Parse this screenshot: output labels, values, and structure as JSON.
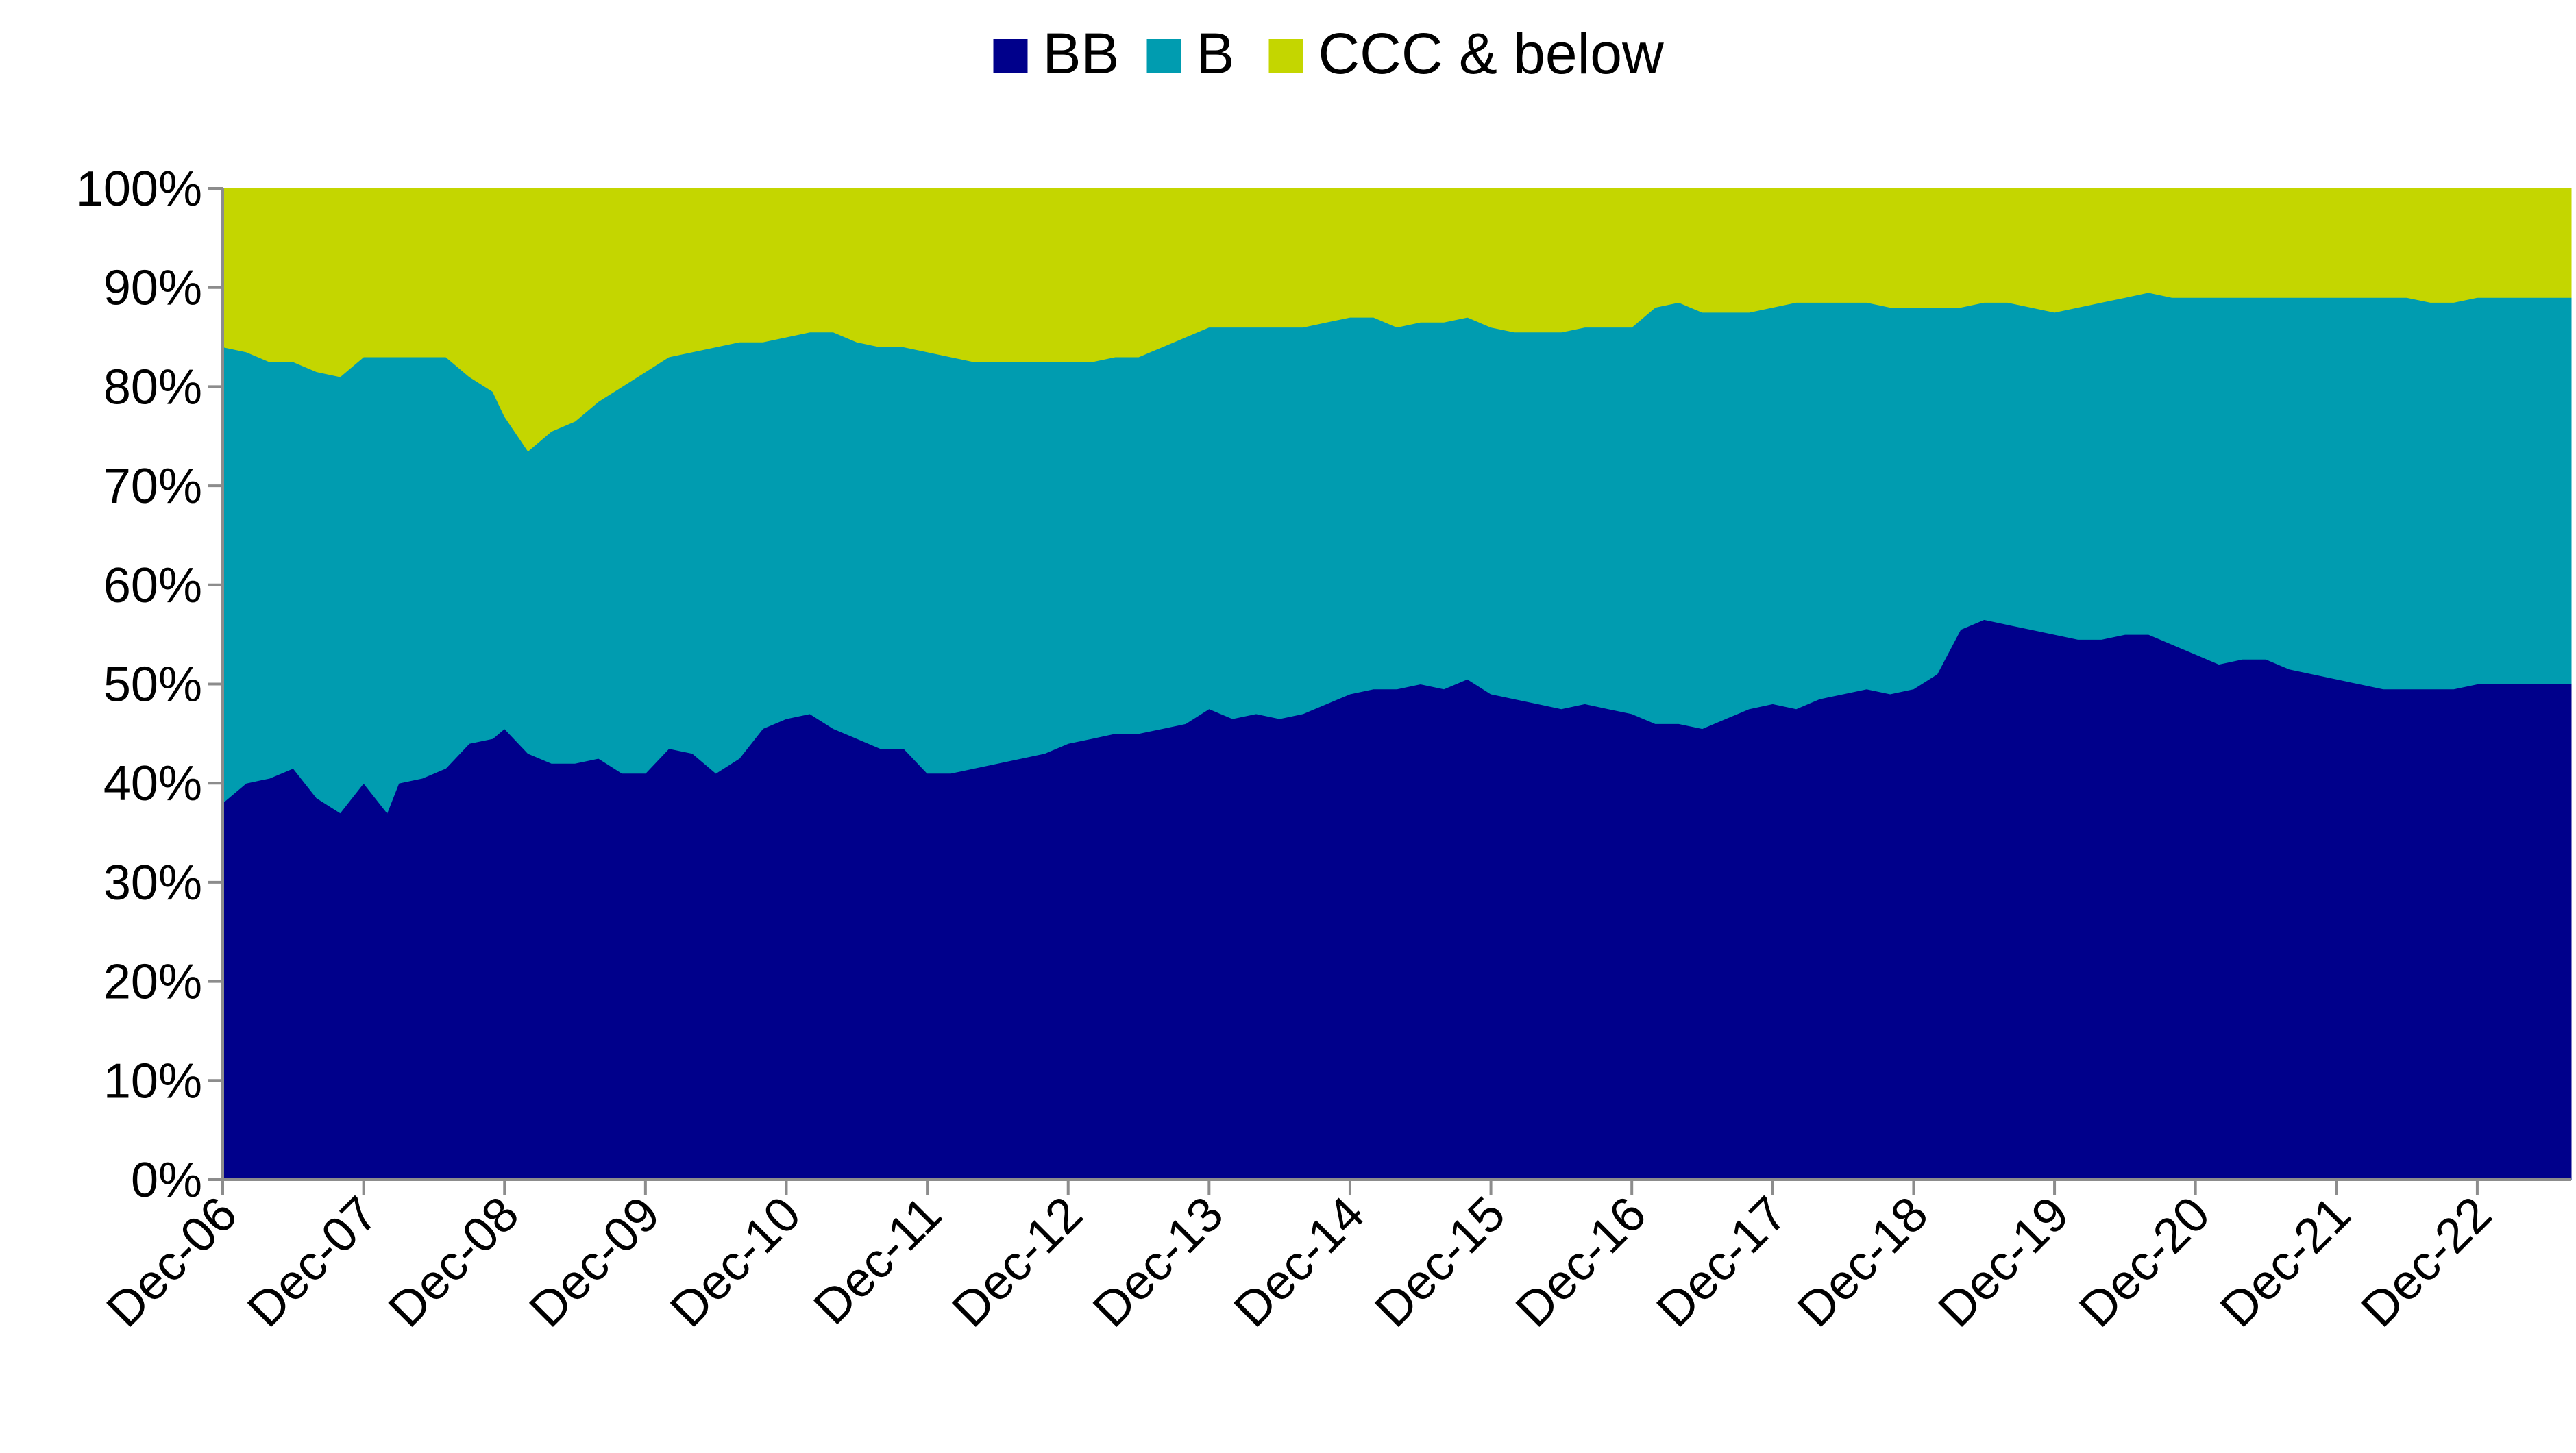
{
  "chart_data": {
    "type": "area",
    "stacked": true,
    "normalized_to_100": true,
    "legend_position": "top-center",
    "grid": false,
    "title": "",
    "xlabel": "",
    "ylabel": "",
    "ylim": [
      0,
      100
    ],
    "yticks": [
      "0%",
      "10%",
      "20%",
      "30%",
      "40%",
      "50%",
      "60%",
      "70%",
      "80%",
      "90%",
      "100%"
    ],
    "xticks": [
      "Dec-06",
      "Dec-07",
      "Dec-08",
      "Dec-09",
      "Dec-10",
      "Dec-11",
      "Dec-12",
      "Dec-13",
      "Dec-14",
      "Dec-15",
      "Dec-16",
      "Dec-17",
      "Dec-18",
      "Dec-19",
      "Dec-20",
      "Dec-21",
      "Dec-22"
    ],
    "x_range": [
      "2006-12",
      "2023-08"
    ],
    "x": [
      "2006-12",
      "2007-02",
      "2007-04",
      "2007-06",
      "2007-08",
      "2007-10",
      "2007-12",
      "2008-02",
      "2008-03",
      "2008-05",
      "2008-07",
      "2008-09",
      "2008-11",
      "2008-12",
      "2009-02",
      "2009-04",
      "2009-06",
      "2009-08",
      "2009-10",
      "2009-12",
      "2010-02",
      "2010-04",
      "2010-06",
      "2010-08",
      "2010-10",
      "2010-12",
      "2011-02",
      "2011-04",
      "2011-06",
      "2011-08",
      "2011-10",
      "2011-12",
      "2012-02",
      "2012-04",
      "2012-06",
      "2012-08",
      "2012-10",
      "2012-12",
      "2013-02",
      "2013-04",
      "2013-06",
      "2013-08",
      "2013-10",
      "2013-12",
      "2014-02",
      "2014-04",
      "2014-06",
      "2014-08",
      "2014-10",
      "2014-12",
      "2015-02",
      "2015-04",
      "2015-06",
      "2015-08",
      "2015-10",
      "2015-12",
      "2016-02",
      "2016-04",
      "2016-06",
      "2016-08",
      "2016-10",
      "2016-12",
      "2017-02",
      "2017-04",
      "2017-06",
      "2017-08",
      "2017-10",
      "2017-12",
      "2018-02",
      "2018-04",
      "2018-06",
      "2018-08",
      "2018-10",
      "2018-12",
      "2019-02",
      "2019-04",
      "2019-06",
      "2019-08",
      "2019-10",
      "2019-12",
      "2020-02",
      "2020-04",
      "2020-06",
      "2020-08",
      "2020-10",
      "2020-12",
      "2021-02",
      "2021-04",
      "2021-06",
      "2021-08",
      "2021-10",
      "2021-12",
      "2022-02",
      "2022-04",
      "2022-06",
      "2022-08",
      "2022-10",
      "2022-12",
      "2023-02",
      "2023-04",
      "2023-06",
      "2023-08"
    ],
    "series": [
      {
        "name": "BB",
        "color": "#00008B",
        "values": [
          38,
          40,
          40.5,
          41.5,
          38.5,
          37,
          40,
          37,
          40,
          40.5,
          41.5,
          44,
          44.5,
          45.5,
          43,
          42,
          42,
          42.5,
          41,
          41,
          43.5,
          43,
          41,
          42.5,
          45.5,
          46.5,
          47,
          45.5,
          44.5,
          43.5,
          43.5,
          41,
          41,
          41.5,
          42,
          42.5,
          43,
          44,
          44.5,
          45,
          45,
          45.5,
          46,
          47.5,
          46.5,
          47,
          46.5,
          47,
          48,
          49,
          49.5,
          49.5,
          50,
          49.5,
          50.5,
          49,
          48.5,
          48,
          47.5,
          48,
          47.5,
          47,
          46,
          46,
          45.5,
          46.5,
          47.5,
          48,
          47.5,
          48.5,
          49,
          49.5,
          49,
          49.5,
          51,
          55.5,
          56.5,
          56,
          55.5,
          55,
          54.5,
          54.5,
          55,
          55,
          54,
          53,
          52,
          52.5,
          52.5,
          51.5,
          51,
          50.5,
          50,
          49.5,
          49.5,
          49.5,
          49.5,
          50,
          50,
          50,
          50,
          50
        ]
      },
      {
        "name": "B",
        "color": "#009CB0",
        "values": [
          46,
          43.5,
          42,
          41,
          43,
          44,
          43,
          46,
          43,
          42.5,
          41.5,
          37,
          35,
          31.5,
          30.5,
          33.5,
          34.5,
          36,
          39,
          40.5,
          39.5,
          40.5,
          43,
          42,
          39,
          38.5,
          38.5,
          40,
          40,
          40.5,
          40.5,
          42.5,
          42,
          41,
          40.5,
          40,
          39.5,
          38.5,
          38,
          38,
          38,
          38.5,
          39,
          38.5,
          39.5,
          39,
          39.5,
          39,
          38.5,
          38,
          37.5,
          36.5,
          36.5,
          37,
          36.5,
          37,
          37,
          37.5,
          38,
          38,
          38.5,
          39,
          42,
          42.5,
          42,
          41,
          40,
          40,
          41,
          40,
          39.5,
          39,
          39,
          38.5,
          37,
          32.5,
          32,
          32.5,
          32.5,
          32.5,
          33.5,
          34,
          34,
          34.5,
          35,
          36,
          37,
          36.5,
          36.5,
          37.5,
          38,
          38.5,
          39,
          39.5,
          39.5,
          39,
          39,
          39,
          39,
          39,
          39,
          39
        ]
      },
      {
        "name": "CCC & below",
        "color": "#C4D600",
        "values": [
          16,
          16.5,
          17.5,
          17.5,
          18.5,
          19,
          17,
          17,
          17,
          17,
          17,
          19,
          20.5,
          23,
          26.5,
          24.5,
          23.5,
          21.5,
          20,
          18.5,
          17,
          16.5,
          16,
          15.5,
          15.5,
          15,
          14.5,
          14.5,
          15.5,
          16,
          16,
          16.5,
          17,
          17.5,
          17.5,
          17.5,
          17.5,
          17.5,
          17.5,
          17,
          17,
          16,
          15,
          14,
          14,
          14,
          14,
          14,
          13.5,
          13,
          13,
          14,
          13.5,
          13.5,
          13,
          14,
          14.5,
          14.5,
          14.5,
          14,
          14,
          14,
          12,
          11.5,
          12.5,
          12.5,
          12.5,
          12,
          11.5,
          11.5,
          11.5,
          11.5,
          12,
          12,
          12,
          12,
          11.5,
          11.5,
          12,
          12.5,
          12,
          11.5,
          11,
          10.5,
          11,
          11,
          11,
          11,
          11,
          11,
          11,
          11,
          11,
          11,
          11,
          11.5,
          11.5,
          11,
          11,
          11,
          11,
          11
        ]
      }
    ]
  }
}
